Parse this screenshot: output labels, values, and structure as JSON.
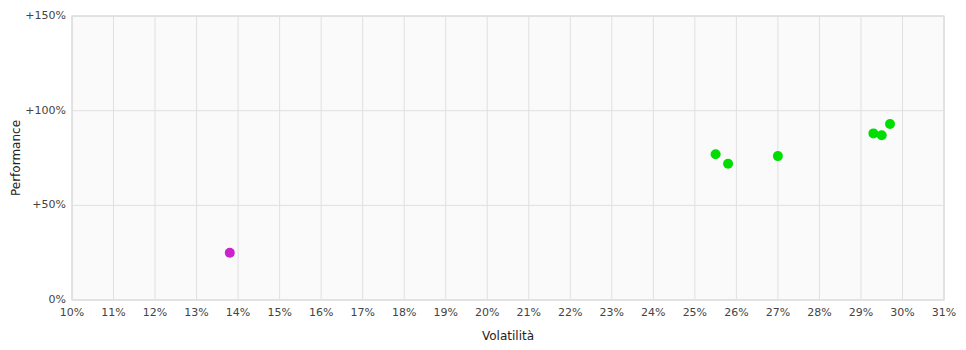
{
  "chart_data": {
    "type": "scatter",
    "xlabel": "Volatilità",
    "ylabel": "Performance",
    "xlim": [
      0.1,
      0.31
    ],
    "ylim": [
      0.0,
      150.0
    ],
    "xticks": [
      {
        "value": 0.1,
        "label": "10%"
      },
      {
        "value": 0.11,
        "label": "11%"
      },
      {
        "value": 0.12,
        "label": "12%"
      },
      {
        "value": 0.13,
        "label": "13%"
      },
      {
        "value": 0.14,
        "label": "14%"
      },
      {
        "value": 0.15,
        "label": "15%"
      },
      {
        "value": 0.16,
        "label": "16%"
      },
      {
        "value": 0.17,
        "label": "17%"
      },
      {
        "value": 0.18,
        "label": "18%"
      },
      {
        "value": 0.19,
        "label": "19%"
      },
      {
        "value": 0.2,
        "label": "20%"
      },
      {
        "value": 0.21,
        "label": "21%"
      },
      {
        "value": 0.22,
        "label": "22%"
      },
      {
        "value": 0.23,
        "label": "23%"
      },
      {
        "value": 0.24,
        "label": "24%"
      },
      {
        "value": 0.25,
        "label": "25%"
      },
      {
        "value": 0.26,
        "label": "26%"
      },
      {
        "value": 0.27,
        "label": "27%"
      },
      {
        "value": 0.28,
        "label": "28%"
      },
      {
        "value": 0.29,
        "label": "29%"
      },
      {
        "value": 0.3,
        "label": "30%"
      },
      {
        "value": 0.31,
        "label": "31%"
      }
    ],
    "yticks": [
      {
        "value": 0.0,
        "label": "0%"
      },
      {
        "value": 50.0,
        "label": "+50%"
      },
      {
        "value": 100.0,
        "label": "+100%"
      },
      {
        "value": 150.0,
        "label": "+150%"
      }
    ],
    "grid": true,
    "series": [
      {
        "color": "#00dd00",
        "x": [
          0.255,
          0.258,
          0.27,
          0.293,
          0.297,
          0.295
        ],
        "values": [
          77,
          72,
          76,
          88,
          93,
          87
        ]
      },
      {
        "color": "#cc22cc",
        "x": [
          0.138
        ],
        "values": [
          25
        ]
      }
    ]
  }
}
